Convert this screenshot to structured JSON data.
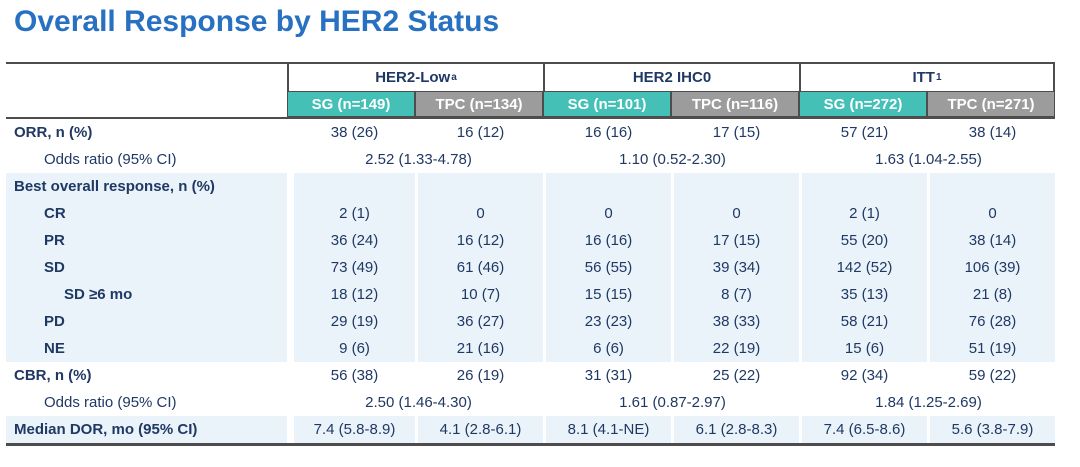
{
  "title": "Overall Response by HER2 Status",
  "colors": {
    "title_blue": "#2770c2",
    "navy": "#1f3864",
    "teal": "#44c0b6",
    "gray": "#9c9c9c",
    "row_shade": "#eaf3f9",
    "border_dark": "#4d4d4d"
  },
  "table": {
    "groups": [
      {
        "label": "HER2-Low",
        "sup": "a",
        "cols": [
          "SG (n=149)",
          "TPC (n=134)"
        ]
      },
      {
        "label": "HER2 IHC0",
        "sup": "",
        "cols": [
          "SG (n=101)",
          "TPC (n=116)"
        ]
      },
      {
        "label": "ITT",
        "sup": "1",
        "cols": [
          "SG (n=272)",
          "TPC (n=271)"
        ]
      }
    ],
    "rows": [
      {
        "label": "ORR, n (%)",
        "bold": true,
        "indent": 0,
        "shaded": false,
        "span": false,
        "cells": [
          "38 (26)",
          "16 (12)",
          "16 (16)",
          "17 (15)",
          "57 (21)",
          "38 (14)"
        ]
      },
      {
        "label": "Odds ratio (95% CI)",
        "bold": false,
        "indent": 1,
        "shaded": false,
        "span": true,
        "cells": [
          "2.52 (1.33-4.78)",
          "1.10 (0.52-2.30)",
          "1.63 (1.04-2.55)"
        ]
      },
      {
        "label": "Best overall response, n (%)",
        "bold": true,
        "indent": 0,
        "shaded": true,
        "span": false,
        "cells": [
          "",
          "",
          "",
          "",
          "",
          ""
        ]
      },
      {
        "label": "CR",
        "bold": true,
        "indent": 1,
        "shaded": true,
        "span": false,
        "cells": [
          "2 (1)",
          "0",
          "0",
          "0",
          "2 (1)",
          "0"
        ]
      },
      {
        "label": "PR",
        "bold": true,
        "indent": 1,
        "shaded": true,
        "span": false,
        "cells": [
          "36 (24)",
          "16 (12)",
          "16 (16)",
          "17 (15)",
          "55 (20)",
          "38 (14)"
        ]
      },
      {
        "label": "SD",
        "bold": true,
        "indent": 1,
        "shaded": true,
        "span": false,
        "cells": [
          "73 (49)",
          "61 (46)",
          "56 (55)",
          "39 (34)",
          "142 (52)",
          "106 (39)"
        ]
      },
      {
        "label": "SD ≥6 mo",
        "bold": true,
        "indent": 2,
        "shaded": true,
        "span": false,
        "cells": [
          "18 (12)",
          "10 (7)",
          "15 (15)",
          "8 (7)",
          "35 (13)",
          "21 (8)"
        ]
      },
      {
        "label": "PD",
        "bold": true,
        "indent": 1,
        "shaded": true,
        "span": false,
        "cells": [
          "29 (19)",
          "36 (27)",
          "23 (23)",
          "38 (33)",
          "58 (21)",
          "76 (28)"
        ]
      },
      {
        "label": "NE",
        "bold": true,
        "indent": 1,
        "shaded": true,
        "span": false,
        "cells": [
          "9 (6)",
          "21 (16)",
          "6 (6)",
          "22 (19)",
          "15 (6)",
          "51 (19)"
        ]
      },
      {
        "label": "CBR, n (%)",
        "bold": true,
        "indent": 0,
        "shaded": false,
        "span": false,
        "cells": [
          "56 (38)",
          "26 (19)",
          "31 (31)",
          "25 (22)",
          "92 (34)",
          "59 (22)"
        ]
      },
      {
        "label": "Odds ratio (95% CI)",
        "bold": false,
        "indent": 1,
        "shaded": false,
        "span": true,
        "cells": [
          "2.50 (1.46-4.30)",
          "1.61 (0.87-2.97)",
          "1.84 (1.25-2.69)"
        ]
      },
      {
        "label": "Median DOR, mo (95% CI)",
        "bold": true,
        "indent": 0,
        "shaded": true,
        "span": false,
        "cells": [
          "7.4 (5.8-8.9)",
          "4.1 (2.8-6.1)",
          "8.1 (4.1-NE)",
          "6.1 (2.8-8.3)",
          "7.4 (6.5-8.6)",
          "5.6 (3.8-7.9)"
        ]
      }
    ]
  }
}
